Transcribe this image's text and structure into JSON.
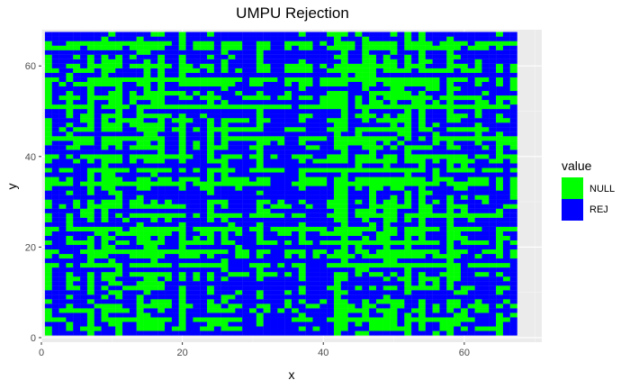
{
  "chart_data": {
    "type": "heatmap",
    "title": "UMPU Rejection",
    "xlabel": "x",
    "ylabel": "y",
    "xlim": [
      0,
      71
    ],
    "ylim": [
      -1,
      68
    ],
    "grid_extent": {
      "x_min": 1,
      "x_max": 67,
      "y_min": 1,
      "y_max": 67
    },
    "x_ticks": [
      0,
      20,
      40,
      60
    ],
    "y_ticks": [
      0,
      20,
      40,
      60
    ],
    "x_tick_labels": [
      "0",
      "20",
      "40",
      "60"
    ],
    "y_tick_labels": [
      "0",
      "20",
      "40",
      "60"
    ],
    "legend": {
      "title": "value",
      "position": "right",
      "entries": [
        {
          "label": "NULL",
          "color": "#00FF00"
        },
        {
          "label": "REJ",
          "color": "#0000FF"
        }
      ]
    },
    "pattern_note": "Each integer (x, y) cell is classified NULL or REJ; pattern approximated",
    "null_share_estimate": 0.5,
    "seed": 20240611
  },
  "colors": {
    "panel_background": "#EBEBEB",
    "grid_major": "#FFFFFF",
    "grid_minor": "#F5F5F5",
    "null": "#00FF00",
    "rej": "#0000FF"
  }
}
